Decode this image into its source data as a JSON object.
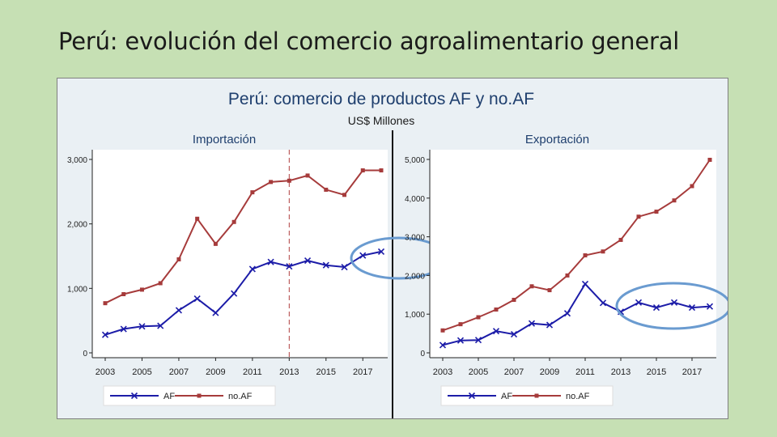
{
  "slide": {
    "title": "Perú: evolución del comercio agroalimentario general"
  },
  "figure": {
    "title": "Perú: comercio de productos AF y no.AF",
    "subtitle": "US$ Millones"
  },
  "colors": {
    "AF": "#1c1ca8",
    "noAF": "#a63b3b",
    "title": "#1f3f6e",
    "panel_bg": "#eaf0f4",
    "highlight": "#6a9bd0",
    "reference_line": "#b04040"
  },
  "chart_data": [
    {
      "type": "line",
      "title": "Importación",
      "x": [
        2003,
        2004,
        2005,
        2006,
        2007,
        2008,
        2009,
        2010,
        2011,
        2012,
        2013,
        2014,
        2015,
        2016,
        2017,
        2018
      ],
      "x_ticks": [
        "2003",
        "2005",
        "2007",
        "2009",
        "2011",
        "2013",
        "2015",
        "2017"
      ],
      "y_ticks": [
        "0",
        "1,000",
        "2,000",
        "3,000"
      ],
      "ylim": [
        0,
        3000
      ],
      "reference_x": 2013,
      "series": [
        {
          "name": "AF",
          "marker": "x",
          "values": [
            280,
            370,
            410,
            420,
            660,
            840,
            620,
            920,
            1300,
            1410,
            1340,
            1430,
            1360,
            1330,
            1510,
            1570
          ]
        },
        {
          "name": "no.AF",
          "marker": "square",
          "values": [
            770,
            910,
            980,
            1080,
            1450,
            2080,
            1690,
            2030,
            2490,
            2650,
            2670,
            2750,
            2530,
            2450,
            2830,
            2830
          ]
        }
      ],
      "legend": [
        "AF",
        "no.AF"
      ],
      "legend_position": "bottom",
      "grid": false
    },
    {
      "type": "line",
      "title": "Exportación",
      "x": [
        2003,
        2004,
        2005,
        2006,
        2007,
        2008,
        2009,
        2010,
        2011,
        2012,
        2013,
        2014,
        2015,
        2016,
        2017,
        2018
      ],
      "x_ticks": [
        "2003",
        "2005",
        "2007",
        "2009",
        "2011",
        "2013",
        "2015",
        "2017"
      ],
      "y_ticks": [
        "0",
        "1,000",
        "2,000",
        "3,000",
        "4,000",
        "5,000"
      ],
      "ylim": [
        0,
        5000
      ],
      "series": [
        {
          "name": "AF",
          "marker": "x",
          "values": [
            200,
            320,
            330,
            560,
            480,
            760,
            720,
            1020,
            1780,
            1290,
            1060,
            1300,
            1170,
            1300,
            1170,
            1200
          ]
        },
        {
          "name": "no.AF",
          "marker": "square",
          "values": [
            580,
            740,
            920,
            1120,
            1370,
            1720,
            1620,
            2000,
            2520,
            2620,
            2920,
            3520,
            3650,
            3940,
            4310,
            4990
          ]
        }
      ],
      "legend": [
        "AF",
        "no.AF"
      ],
      "legend_position": "bottom",
      "grid": false
    }
  ]
}
